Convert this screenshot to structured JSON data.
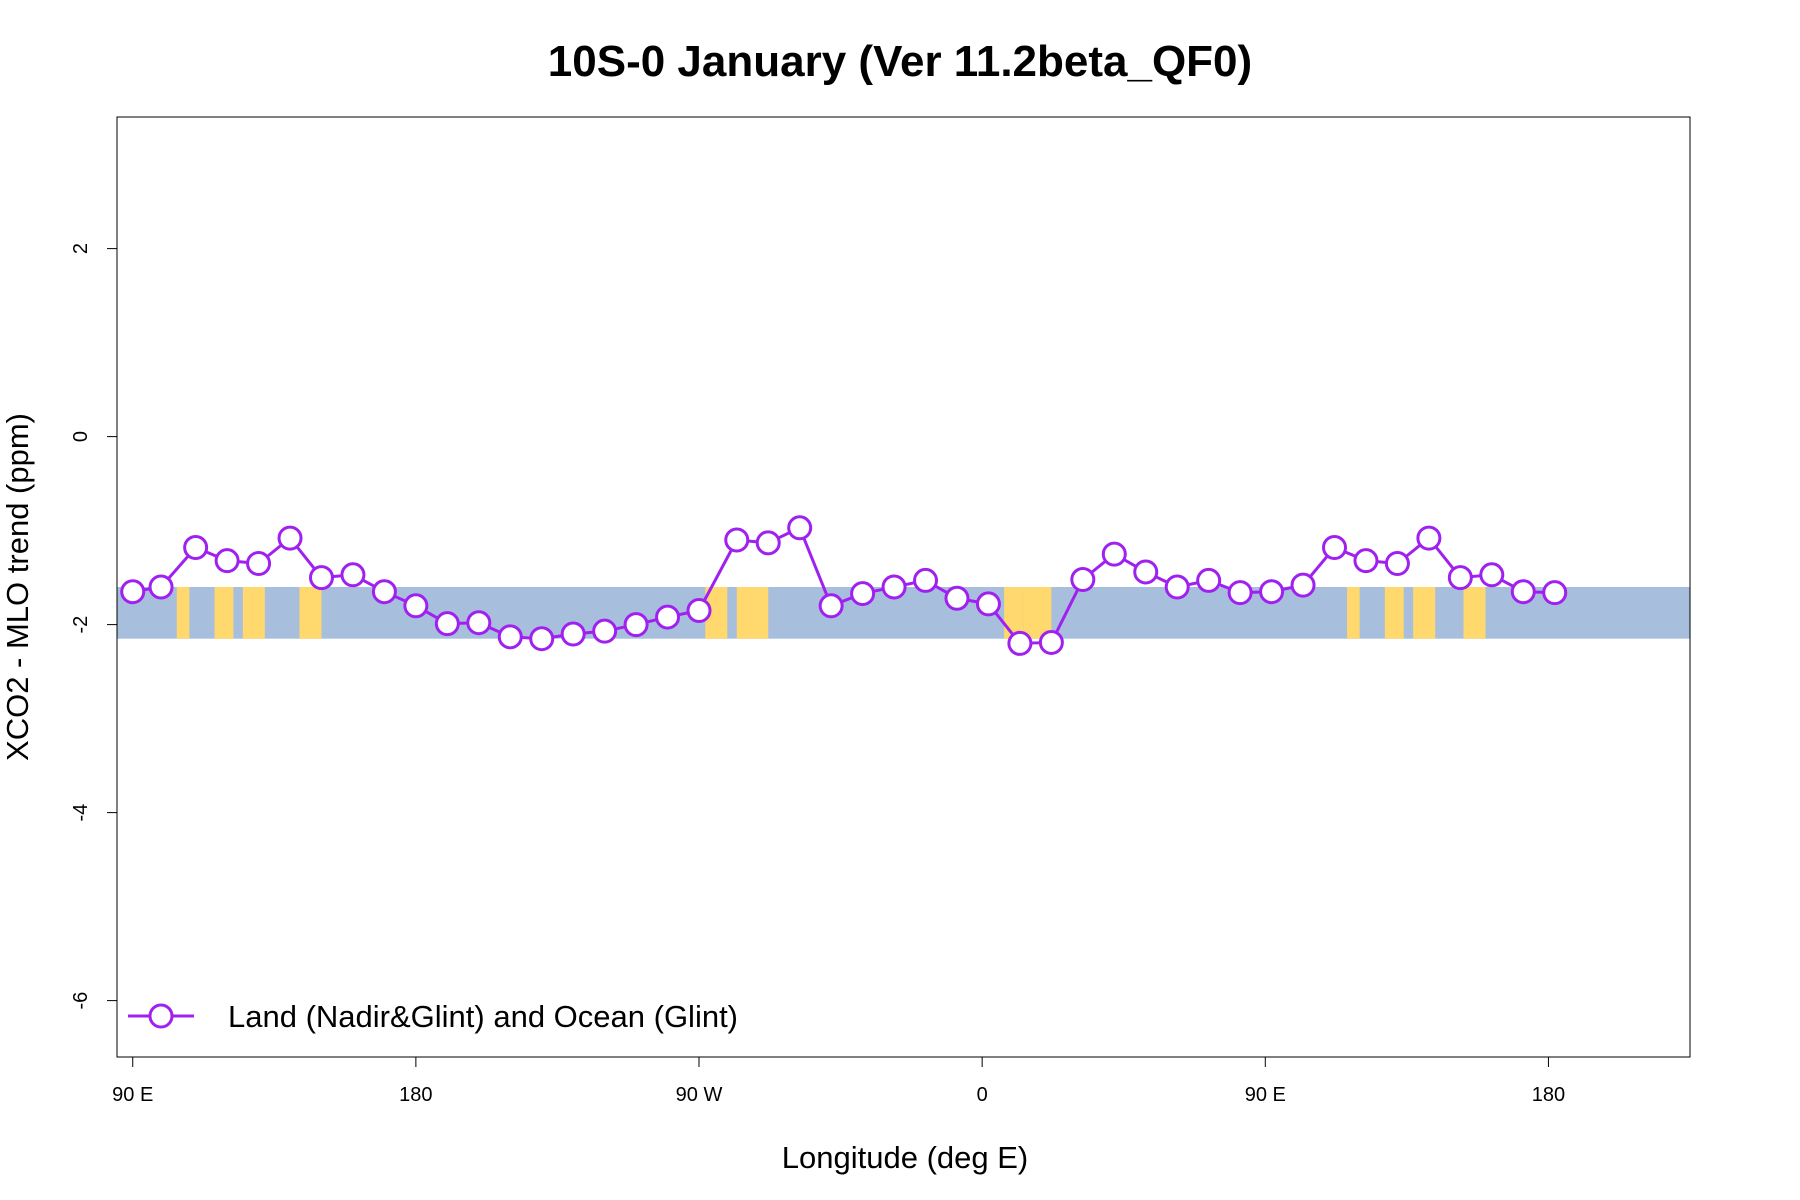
{
  "chart_data": {
    "type": "line",
    "title": "10S-0 January (Ver 11.2beta_QF0)",
    "xlabel": "Longitude (deg E)",
    "ylabel": "XCO2 - MLO trend (ppm)",
    "xlim": [
      85,
      585
    ],
    "ylim": [
      -6.6,
      3.4
    ],
    "x_ticks": [
      {
        "value": 90,
        "label": "90 E"
      },
      {
        "value": 180,
        "label": "180"
      },
      {
        "value": 270,
        "label": "90 W"
      },
      {
        "value": 360,
        "label": "0"
      },
      {
        "value": 450,
        "label": "90 E"
      },
      {
        "value": 540,
        "label": "180"
      }
    ],
    "y_ticks": [
      {
        "value": 2,
        "label": "2"
      },
      {
        "value": 0,
        "label": "0"
      },
      {
        "value": -2,
        "label": "-2"
      },
      {
        "value": -4,
        "label": "-4"
      },
      {
        "value": -6,
        "label": "-6"
      }
    ],
    "band": {
      "y_range": [
        -2.15,
        -1.6
      ],
      "ocean_color": "#a8bedd",
      "land_color": "#ffd86e",
      "land_lon_ranges": [
        [
          104,
          108
        ],
        [
          116,
          122
        ],
        [
          125,
          132
        ],
        [
          143,
          150
        ],
        [
          272,
          279
        ],
        [
          282,
          292
        ],
        [
          367,
          373
        ],
        [
          373,
          382
        ],
        [
          476,
          480
        ],
        [
          488,
          494
        ],
        [
          497,
          504
        ],
        [
          513,
          520
        ]
      ]
    },
    "series": [
      {
        "name": "Land (Nadir&Glint) and Ocean (Glint)",
        "color": "#a020f0",
        "x": [
          90,
          99,
          110,
          120,
          130,
          140,
          150,
          160,
          170,
          180,
          190,
          200,
          210,
          220,
          230,
          240,
          250,
          260,
          270,
          282,
          292,
          302,
          312,
          322,
          332,
          342,
          352,
          362,
          372,
          382,
          392,
          402,
          412,
          422,
          432,
          442,
          452,
          462,
          472,
          482,
          492,
          502,
          512,
          522,
          532,
          542
        ],
        "values": [
          -1.65,
          -1.6,
          -1.18,
          -1.32,
          -1.35,
          -1.08,
          -1.5,
          -1.47,
          -1.65,
          -1.8,
          -1.99,
          -1.98,
          -2.13,
          -2.15,
          -2.1,
          -2.07,
          -2.0,
          -1.92,
          -1.85,
          -1.1,
          -1.13,
          -0.97,
          -1.8,
          -1.67,
          -1.6,
          -1.53,
          -1.72,
          -1.78,
          -2.2,
          -2.19,
          -1.52,
          -1.25,
          -1.44,
          -1.6,
          -1.53,
          -1.66,
          -1.65,
          -1.58,
          -1.18,
          -1.32,
          -1.35,
          -1.08,
          -1.5,
          -1.47,
          -1.65,
          -1.66
        ]
      }
    ],
    "legend": {
      "position": "bottom-left",
      "label": "Land (Nadir&Glint) and Ocean (Glint)"
    }
  }
}
